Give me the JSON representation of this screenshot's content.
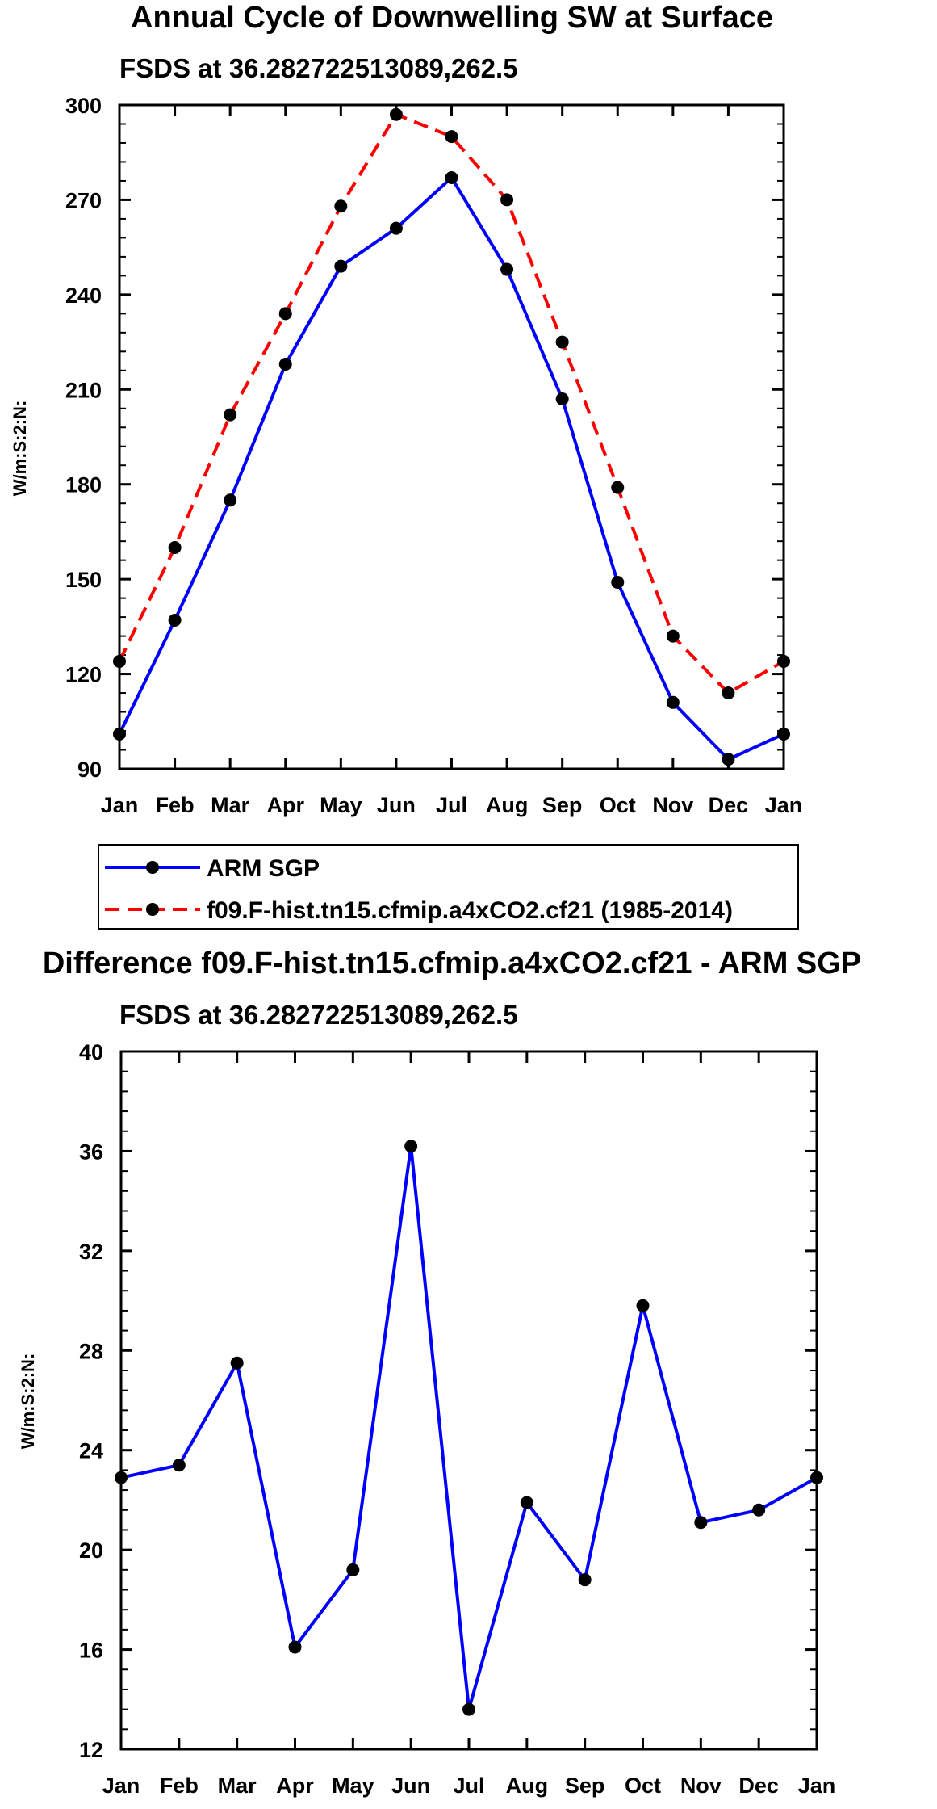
{
  "chart_data": [
    {
      "type": "line",
      "title": "Annual Cycle of Downwelling SW at Surface",
      "subtitle": "FSDS at 36.282722513089,262.5",
      "xlabel": "",
      "ylabel": "W/m:S:2:N:",
      "categories": [
        "Jan",
        "Feb",
        "Mar",
        "Apr",
        "May",
        "Jun",
        "Jul",
        "Aug",
        "Sep",
        "Oct",
        "Nov",
        "Dec",
        "Jan"
      ],
      "ylim": [
        90,
        300
      ],
      "yticks": [
        90,
        120,
        150,
        180,
        210,
        240,
        270,
        300
      ],
      "yticks_labels": [
        "90",
        "120",
        "150",
        "180",
        "210",
        "240",
        "270",
        "300"
      ],
      "series": [
        {
          "name": "ARM SGP",
          "color": "#0000ff",
          "dash": "solid",
          "values": [
            101,
            137,
            175,
            218,
            249,
            261,
            277,
            248,
            207,
            149,
            111,
            93,
            101
          ]
        },
        {
          "name": "f09.F-hist.tn15.cfmip.a4xCO2.cf21 (1985-2014)",
          "color": "#ff0000",
          "dash": "dashed",
          "values": [
            124,
            160,
            202,
            234,
            268,
            297,
            290,
            270,
            225,
            179,
            132,
            114,
            124
          ]
        }
      ],
      "legend": "below"
    },
    {
      "type": "line",
      "title": "Difference f09.F-hist.tn15.cfmip.a4xCO2.cf21 - ARM SGP",
      "subtitle": "FSDS at 36.282722513089,262.5",
      "xlabel": "",
      "ylabel": "W/m:S:2:N:",
      "categories": [
        "Jan",
        "Feb",
        "Mar",
        "Apr",
        "May",
        "Jun",
        "Jul",
        "Aug",
        "Sep",
        "Oct",
        "Nov",
        "Dec",
        "Jan"
      ],
      "ylim": [
        12,
        40
      ],
      "yticks": [
        12,
        16,
        20,
        24,
        28,
        32,
        36,
        40
      ],
      "yticks_labels": [
        "12",
        "16",
        "20",
        "24",
        "28",
        "32",
        "36",
        "40"
      ],
      "series": [
        {
          "name": "Difference",
          "color": "#0000ff",
          "dash": "solid",
          "values": [
            22.9,
            23.4,
            27.5,
            16.1,
            19.2,
            36.2,
            13.6,
            21.9,
            18.8,
            29.8,
            21.1,
            21.6,
            22.9
          ]
        }
      ]
    }
  ]
}
